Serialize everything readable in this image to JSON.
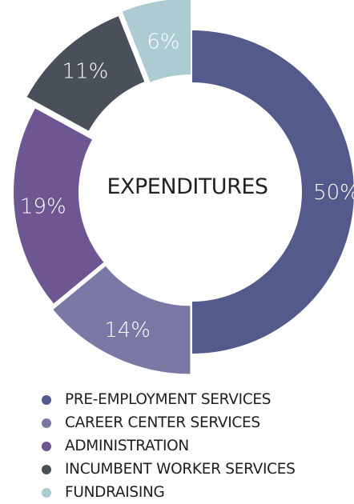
{
  "chart_data": {
    "type": "pie",
    "title": "EXPENDITURES",
    "slices": [
      {
        "label": "PRE-EMPLOYMENT SERVICES",
        "value": 50,
        "value_label": "50%",
        "color": "#545b8c"
      },
      {
        "label": "CAREER CENTER SERVICES",
        "value": 14,
        "value_label": "14%",
        "color": "#7a79a6"
      },
      {
        "label": "ADMINISTRATION",
        "value": 19,
        "value_label": "19%",
        "color": "#6e5692"
      },
      {
        "label": "INCUMBENT WORKER SERVICES",
        "value": 11,
        "value_label": "11%",
        "color": "#4a5059"
      },
      {
        "label": "FUNDRAISING",
        "value": 6,
        "value_label": "6%",
        "color": "#adcbd3"
      }
    ],
    "legend_position": "bottom-left",
    "style": "exploded-donut"
  }
}
